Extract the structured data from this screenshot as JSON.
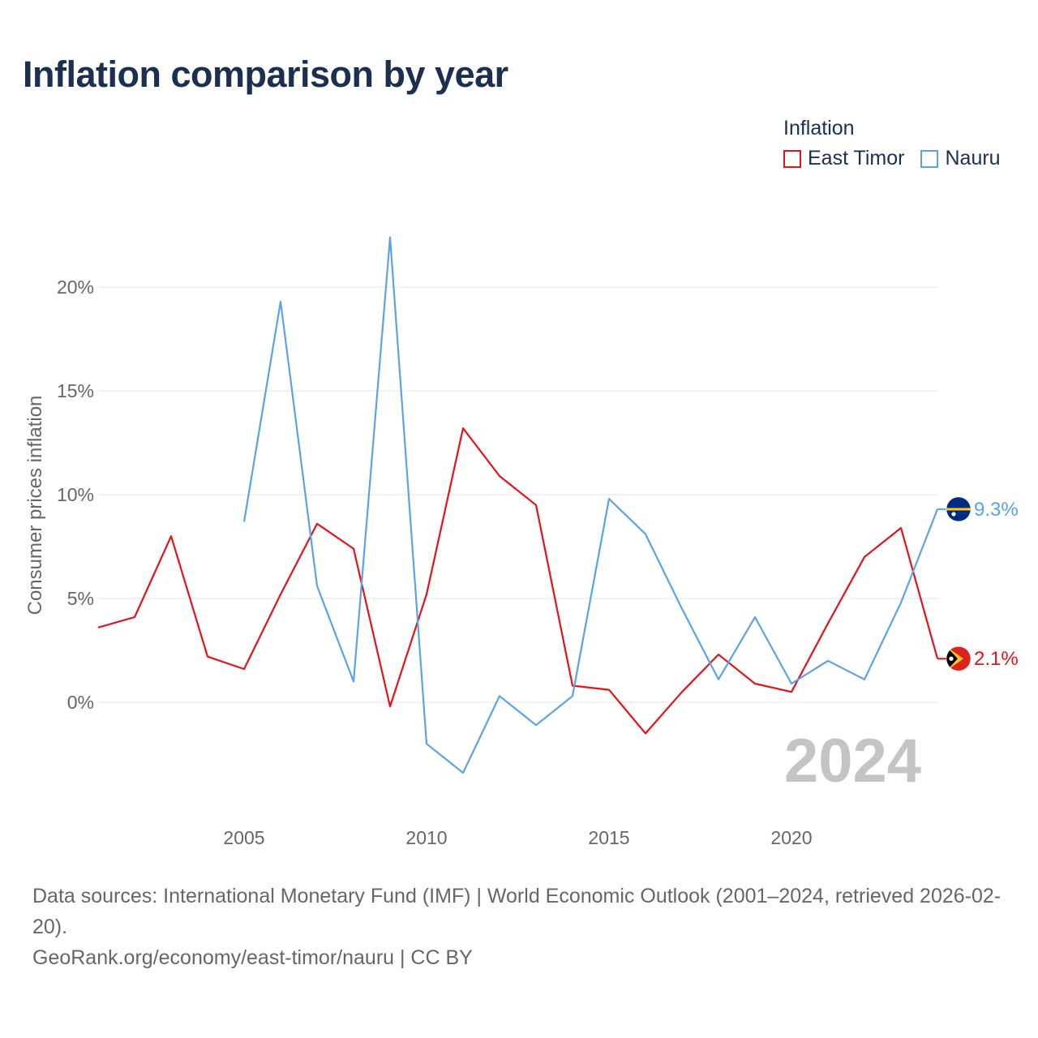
{
  "title": "Inflation comparison by year",
  "legend": {
    "title": "Inflation",
    "items": [
      {
        "label": "East Timor",
        "color": "#e3131b"
      },
      {
        "label": "Nauru",
        "color": "#5ba3e6"
      }
    ]
  },
  "year_label": "2024",
  "source_line1": "Data sources: International Monetary Fund (IMF) | World Economic Outlook (2001–2024, retrieved 2026-02-20).",
  "source_line2": "GeoRank.org/economy/east-timor/nauru | CC BY",
  "chart_data": {
    "type": "line",
    "title": "Inflation comparison by year",
    "ylabel": "Consumer prices inflation",
    "xlabel": "",
    "xlim": [
      2001,
      2024
    ],
    "ylim": [
      -5,
      25
    ],
    "yticks": [
      0,
      5,
      10,
      15,
      20
    ],
    "ytick_labels": [
      "0%",
      "5%",
      "10%",
      "15%",
      "20%"
    ],
    "xticks": [
      2005,
      2010,
      2015,
      2020
    ],
    "xtick_labels": [
      "2005",
      "2010",
      "2015",
      "2020"
    ],
    "grid": true,
    "legend_position": "top-right",
    "series": [
      {
        "name": "East Timor",
        "color": "#e3131b",
        "end_label": "2.1%",
        "x": [
          2001,
          2002,
          2003,
          2004,
          2005,
          2006,
          2007,
          2008,
          2009,
          2010,
          2011,
          2012,
          2013,
          2014,
          2015,
          2016,
          2017,
          2018,
          2019,
          2020,
          2021,
          2022,
          2023,
          2024
        ],
        "values": [
          3.6,
          4.1,
          8.0,
          2.2,
          1.6,
          5.2,
          8.6,
          7.4,
          -0.2,
          5.2,
          13.2,
          10.9,
          9.5,
          0.8,
          0.6,
          -1.5,
          0.5,
          2.3,
          0.9,
          0.5,
          3.8,
          7.0,
          8.4,
          2.1
        ]
      },
      {
        "name": "Nauru",
        "color": "#5ba3e6",
        "end_label": "9.3%",
        "x": [
          2005,
          2006,
          2007,
          2008,
          2009,
          2010,
          2011,
          2012,
          2013,
          2014,
          2015,
          2016,
          2017,
          2018,
          2019,
          2020,
          2021,
          2022,
          2023,
          2024
        ],
        "values": [
          8.7,
          19.3,
          5.6,
          1.0,
          22.4,
          -2.0,
          -3.4,
          0.3,
          -1.1,
          0.3,
          9.8,
          8.1,
          4.5,
          1.1,
          4.1,
          0.9,
          2.0,
          1.1,
          4.8,
          9.3
        ]
      }
    ]
  }
}
